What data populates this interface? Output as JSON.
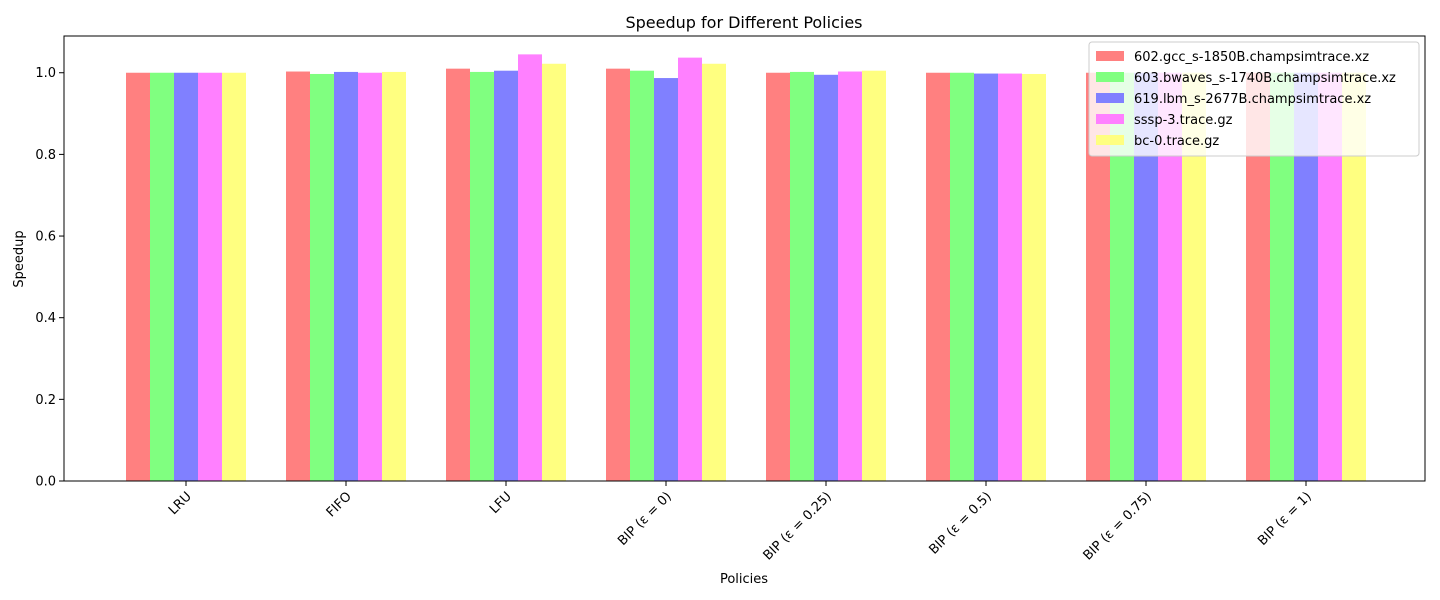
{
  "chart_data": {
    "type": "bar",
    "title": "Speedup for Different Policies",
    "xlabel": "Policies",
    "ylabel": "Speedup",
    "ylim": [
      0,
      1.09
    ],
    "yticks": [
      "0.0",
      "0.2",
      "0.4",
      "0.6",
      "0.8",
      "1.0"
    ],
    "ytick_values": [
      0,
      0.2,
      0.4,
      0.6,
      0.8,
      1.0
    ],
    "legend_position": "top-right",
    "grid": false,
    "categories": [
      "LRU",
      "FIFO",
      "LFU",
      "BIP (ε = 0)",
      "BIP (ε = 0.25)",
      "BIP (ε = 0.5)",
      "BIP (ε = 0.75)",
      "BIP (ε = 1)"
    ],
    "series": [
      {
        "name": "602.gcc_s-1850B.champsimtrace.xz",
        "color": "#ff8080",
        "values": [
          1.0,
          1.003,
          1.01,
          1.01,
          1.0,
          1.0,
          1.0,
          1.0
        ]
      },
      {
        "name": "603.bwaves_s-1740B.champsimtrace.xz",
        "color": "#80ff80",
        "values": [
          1.0,
          0.997,
          1.002,
          1.005,
          1.002,
          1.0,
          1.0,
          1.0
        ]
      },
      {
        "name": "619.lbm_s-2677B.champsimtrace.xz",
        "color": "#8080ff",
        "values": [
          1.0,
          1.002,
          1.005,
          0.987,
          0.995,
          0.998,
          1.0,
          1.0
        ]
      },
      {
        "name": "sssp-3.trace.gz",
        "color": "#ff80ff",
        "values": [
          1.0,
          1.0,
          1.045,
          1.037,
          1.003,
          0.998,
          1.0,
          1.0
        ]
      },
      {
        "name": "bc-0.trace.gz",
        "color": "#ffff80",
        "values": [
          1.0,
          1.002,
          1.022,
          1.022,
          1.005,
          0.997,
          1.0,
          1.0
        ]
      }
    ]
  }
}
